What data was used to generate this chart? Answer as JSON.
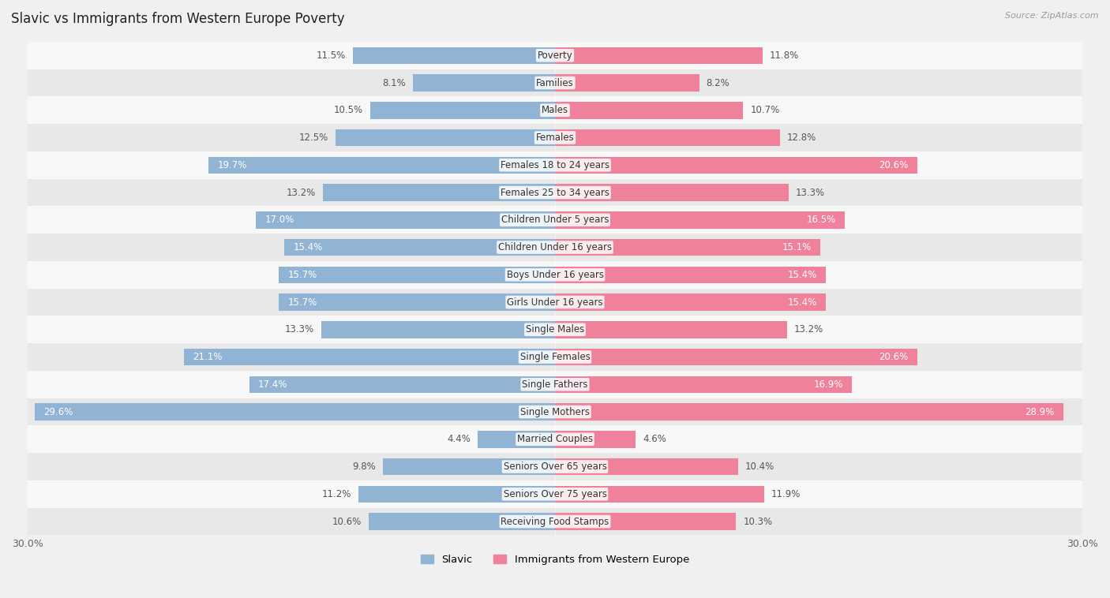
{
  "title": "Slavic vs Immigrants from Western Europe Poverty",
  "source": "Source: ZipAtlas.com",
  "categories": [
    "Poverty",
    "Families",
    "Males",
    "Females",
    "Females 18 to 24 years",
    "Females 25 to 34 years",
    "Children Under 5 years",
    "Children Under 16 years",
    "Boys Under 16 years",
    "Girls Under 16 years",
    "Single Males",
    "Single Females",
    "Single Fathers",
    "Single Mothers",
    "Married Couples",
    "Seniors Over 65 years",
    "Seniors Over 75 years",
    "Receiving Food Stamps"
  ],
  "slavic_values": [
    11.5,
    8.1,
    10.5,
    12.5,
    19.7,
    13.2,
    17.0,
    15.4,
    15.7,
    15.7,
    13.3,
    21.1,
    17.4,
    29.6,
    4.4,
    9.8,
    11.2,
    10.6
  ],
  "western_values": [
    11.8,
    8.2,
    10.7,
    12.8,
    20.6,
    13.3,
    16.5,
    15.1,
    15.4,
    15.4,
    13.2,
    20.6,
    16.9,
    28.9,
    4.6,
    10.4,
    11.9,
    10.3
  ],
  "slavic_color": "#92b4d4",
  "western_color": "#f0819a",
  "background_color": "#f0f0f0",
  "row_bg_even": "#f8f8f8",
  "row_bg_odd": "#e8e8e8",
  "legend_slavic": "Slavic",
  "legend_western": "Immigrants from Western Europe",
  "max_val": 30.0,
  "label_threshold": 15.0
}
